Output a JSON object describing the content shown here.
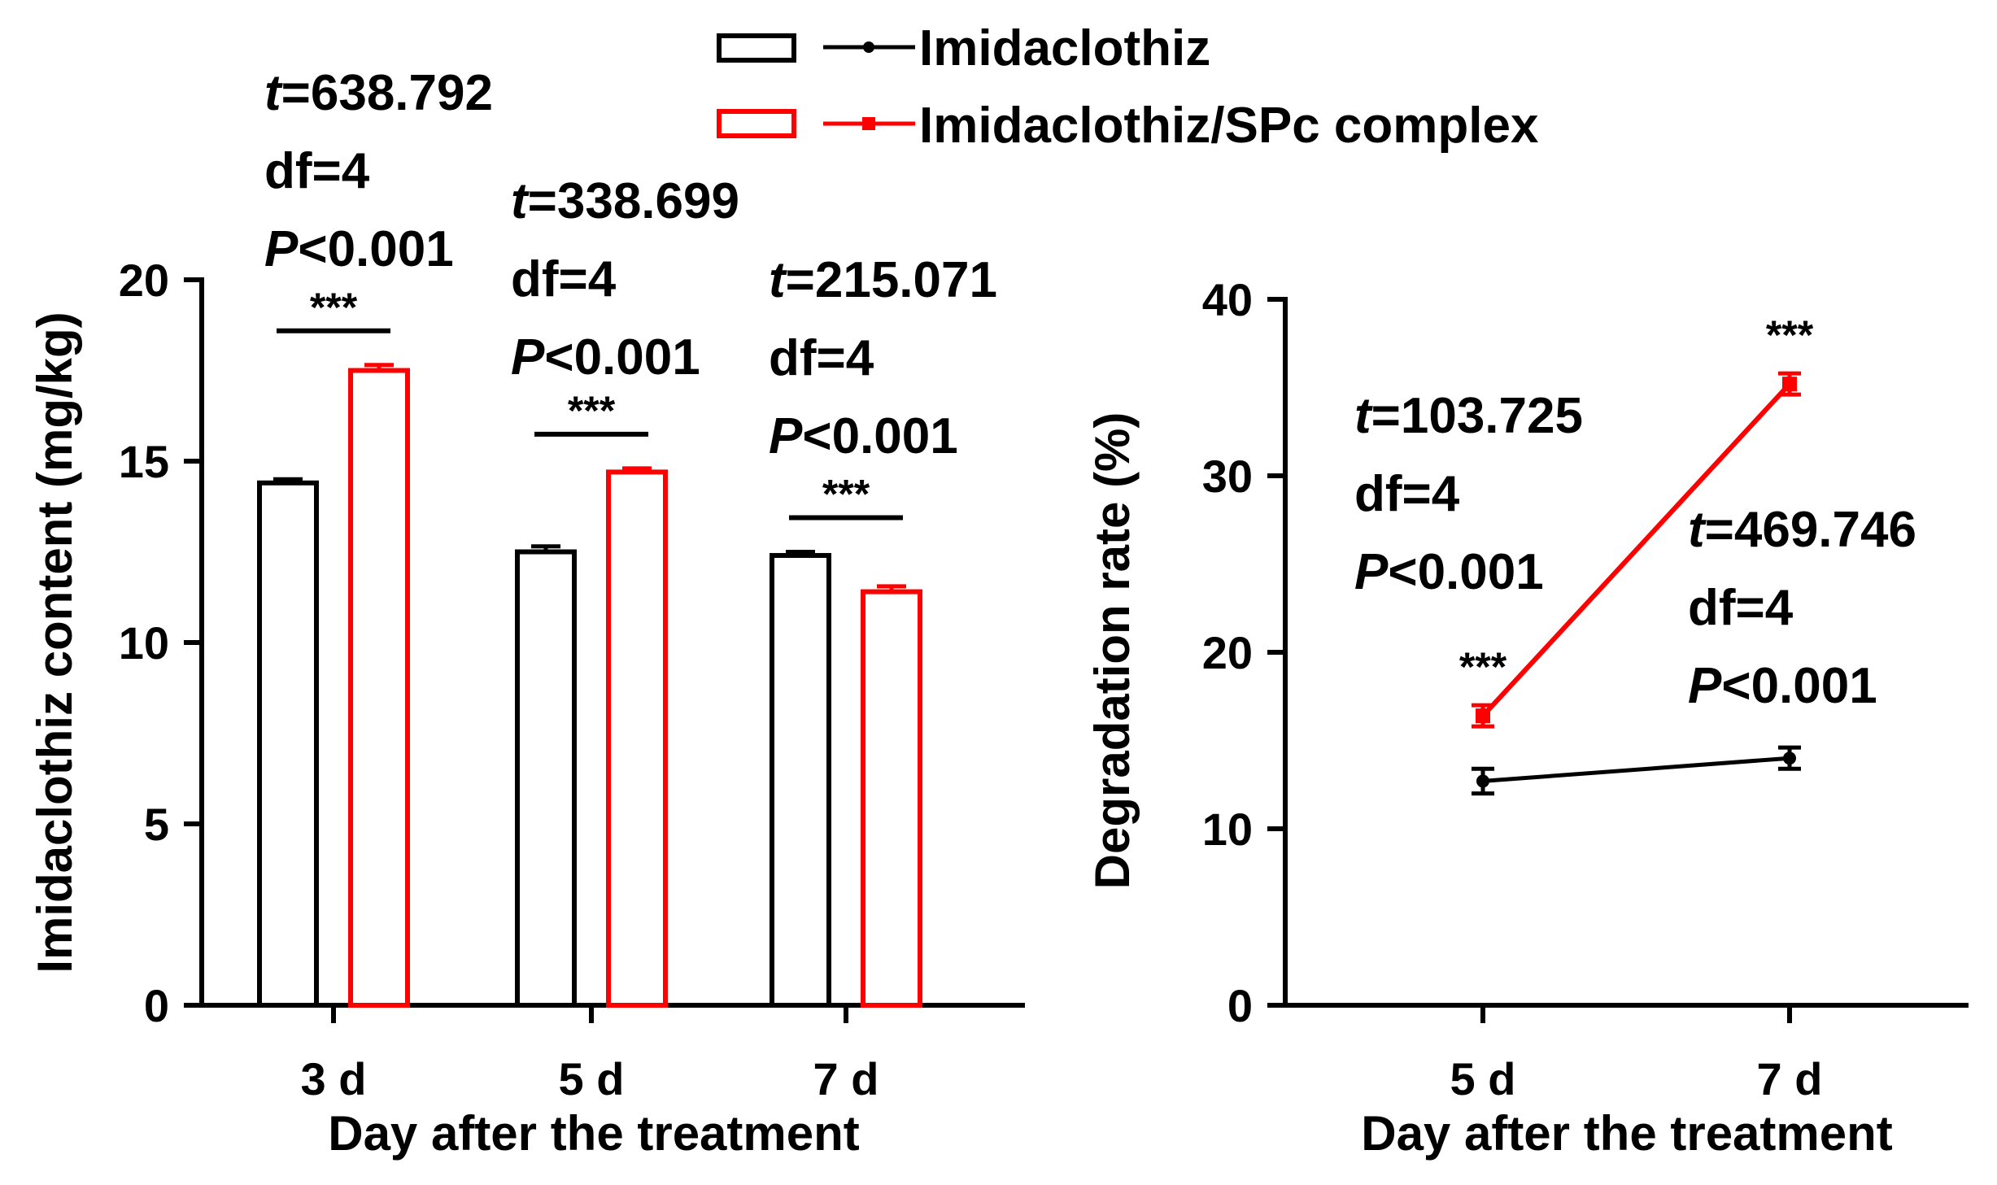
{
  "colors": {
    "series1": "#000000",
    "series2": "#ff0000"
  },
  "legend": [
    {
      "label": "Imidaclothiz",
      "color": "#000000"
    },
    {
      "label": "Imidaclothiz/SPc complex",
      "color": "#ff0000"
    }
  ],
  "chart_data": [
    {
      "type": "bar",
      "title": "",
      "xlabel": "Day after the treatment",
      "ylabel": "Imidaclothiz content (mg/kg)",
      "ylim": [
        0,
        20
      ],
      "yticks": [
        0,
        5,
        10,
        15,
        20
      ],
      "categories": [
        "3 d",
        "5 d",
        "7 d"
      ],
      "series": [
        {
          "name": "Imidaclothiz",
          "values": [
            14.4,
            12.5,
            12.4
          ],
          "errors": [
            0.1,
            0.15,
            0.1
          ]
        },
        {
          "name": "Imidaclothiz/SPc complex",
          "values": [
            17.5,
            14.7,
            11.4
          ],
          "errors": [
            0.15,
            0.1,
            0.15
          ]
        }
      ],
      "annotations": [
        {
          "category": "3 d",
          "stars": "***",
          "stats": [
            {
              "italic": "t",
              "text": "=638.792"
            },
            {
              "italic": "",
              "text": "df=4"
            },
            {
              "italic": "P",
              "text": "<0.001"
            }
          ]
        },
        {
          "category": "5 d",
          "stars": "***",
          "stats": [
            {
              "italic": "t",
              "text": "=338.699"
            },
            {
              "italic": "",
              "text": "df=4"
            },
            {
              "italic": "P",
              "text": "<0.001"
            }
          ]
        },
        {
          "category": "7 d",
          "stars": "***",
          "stats": [
            {
              "italic": "t",
              "text": "=215.071"
            },
            {
              "italic": "",
              "text": "df=4"
            },
            {
              "italic": "P",
              "text": "<0.001"
            }
          ]
        }
      ]
    },
    {
      "type": "line",
      "title": "",
      "xlabel": "Day after the treatment",
      "ylabel": "Degradation rate (%)",
      "ylim": [
        0,
        40
      ],
      "yticks": [
        0,
        10,
        20,
        30,
        40
      ],
      "categories": [
        "5 d",
        "7 d"
      ],
      "series": [
        {
          "name": "Imidaclothiz",
          "values": [
            12.7,
            14.0
          ],
          "errors": [
            0.7,
            0.6
          ]
        },
        {
          "name": "Imidaclothiz/SPc complex",
          "values": [
            16.4,
            35.2
          ],
          "errors": [
            0.6,
            0.6
          ]
        }
      ],
      "annotations": [
        {
          "category": "5 d",
          "stars": "***",
          "stats": [
            {
              "italic": "t",
              "text": "=103.725"
            },
            {
              "italic": "",
              "text": "df=4"
            },
            {
              "italic": "P",
              "text": "<0.001"
            }
          ]
        },
        {
          "category": "7 d",
          "stars": "***",
          "stats": [
            {
              "italic": "t",
              "text": "=469.746"
            },
            {
              "italic": "",
              "text": "df=4"
            },
            {
              "italic": "P",
              "text": "<0.001"
            }
          ]
        }
      ]
    }
  ]
}
